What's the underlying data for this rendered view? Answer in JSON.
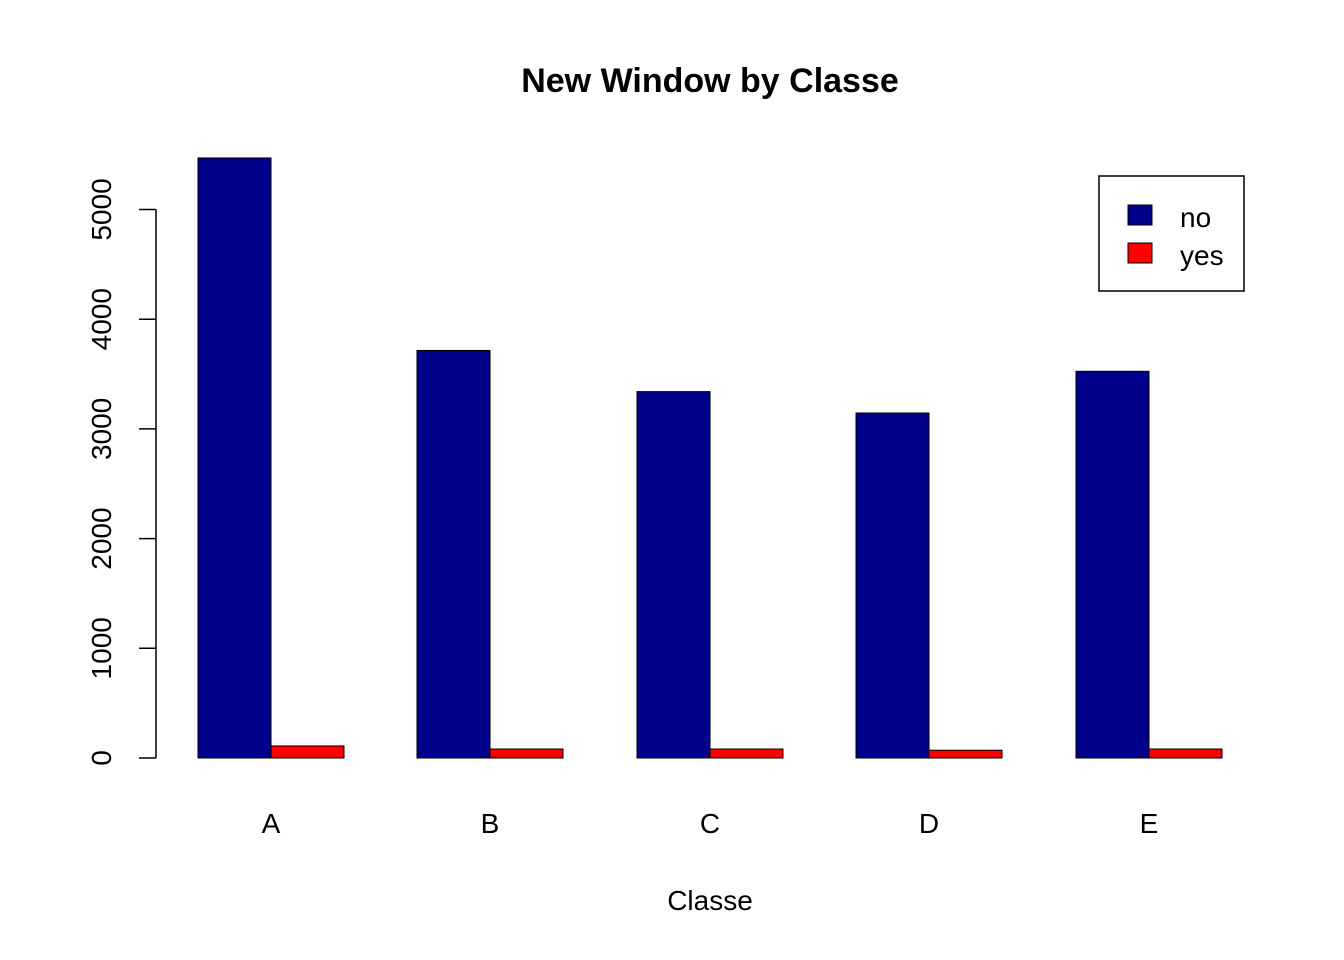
{
  "chart_data": {
    "type": "bar",
    "title": "New Window by Classe",
    "xlabel": "Classe",
    "ylabel": "",
    "categories": [
      "A",
      "B",
      "C",
      "D",
      "E"
    ],
    "series": [
      {
        "name": "no",
        "color": "#00008B",
        "values": [
          5470,
          3715,
          3340,
          3145,
          3525
        ]
      },
      {
        "name": "yes",
        "color": "#FF0000",
        "values": [
          110,
          82,
          82,
          71,
          82
        ]
      }
    ],
    "ylim": [
      0,
      5500
    ],
    "yticks": [
      "0",
      "1000",
      "2000",
      "3000",
      "4000",
      "5000"
    ],
    "grid": false,
    "legend": {
      "position": "top-right",
      "entries": [
        "no",
        "yes"
      ]
    }
  }
}
